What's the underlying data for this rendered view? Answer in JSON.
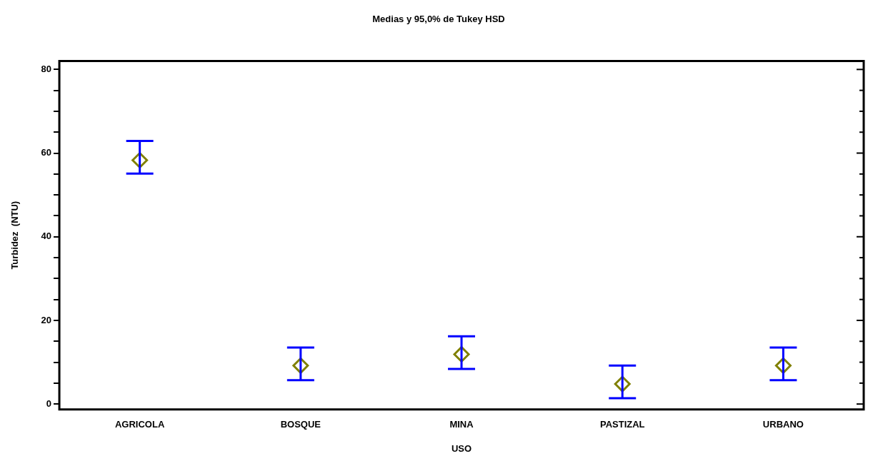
{
  "chart_data": {
    "type": "scatter",
    "title": "Medias y 95,0% de Tukey HSD",
    "xlabel": "USO",
    "ylabel": "Turbidez  (NTU)",
    "categories": [
      "AGRICOLA",
      "BOSQUE",
      "MINA",
      "PASTIZAL",
      "URBANO"
    ],
    "values": [
      58.3,
      9.2,
      11.9,
      4.8,
      9.2
    ],
    "errors": [
      [
        55.1,
        62.9
      ],
      [
        5.7,
        13.5
      ],
      [
        8.4,
        16.2
      ],
      [
        1.4,
        9.2
      ],
      [
        5.7,
        13.5
      ]
    ],
    "color": "#808000",
    "marker": "diamond",
    "grid": false,
    "legend": false,
    "ylim": [
      -1.3,
      82
    ],
    "yticks": [
      0,
      {
        "value": 5,
        "label": null
      },
      {
        "value": 10,
        "label": null
      },
      {
        "value": 15,
        "label": null
      },
      20,
      {
        "value": 25,
        "label": null
      },
      {
        "value": 30,
        "label": null
      },
      {
        "value": 35,
        "label": null
      },
      40,
      {
        "value": 45,
        "label": null
      },
      {
        "value": 50,
        "label": null
      },
      {
        "value": 55,
        "label": null
      },
      60,
      {
        "value": 65,
        "label": null
      },
      {
        "value": 70,
        "label": null
      },
      {
        "value": 75,
        "label": null
      },
      80
    ]
  }
}
